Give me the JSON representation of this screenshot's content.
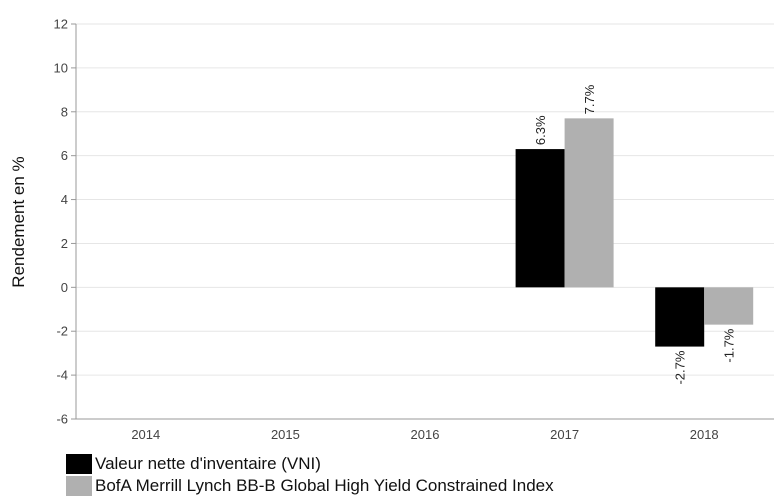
{
  "chart_data": {
    "type": "bar",
    "categories": [
      "2014",
      "2015",
      "2016",
      "2017",
      "2018"
    ],
    "series": [
      {
        "name": "Valeur nette d'inventaire (VNI)",
        "color": "#000000",
        "values": [
          null,
          null,
          null,
          6.3,
          -2.7
        ],
        "labels": [
          null,
          null,
          null,
          "6.3%",
          "-2.7%"
        ]
      },
      {
        "name": "BofA Merrill Lynch BB-B Global High Yield Constrained Index",
        "color": "#b0b0b0",
        "values": [
          null,
          null,
          null,
          7.7,
          -1.7
        ],
        "labels": [
          null,
          null,
          null,
          "7.7%",
          "-1.7%"
        ]
      }
    ],
    "ylabel": "Rendement en %",
    "ylim": [
      -6,
      12
    ],
    "yticks": [
      "12",
      "10",
      "8",
      "6",
      "4",
      "2",
      "0",
      "-2",
      "-4",
      "-6"
    ],
    "grid": true,
    "legend_position": "bottom-left"
  }
}
